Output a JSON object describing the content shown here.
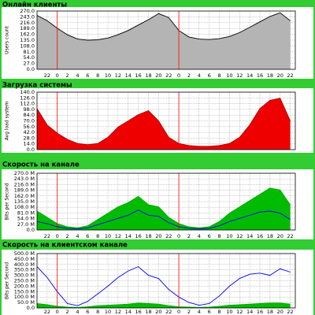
{
  "chart_data": [
    {
      "type": "area",
      "title": "Онлайн клиенты",
      "y_label": "Users count",
      "x": [
        0,
        2,
        4,
        6,
        8,
        10,
        12,
        14,
        16,
        18,
        20,
        22,
        24,
        26,
        28,
        30,
        32,
        34,
        36,
        38,
        40,
        42,
        44,
        46,
        48,
        50
      ],
      "series": [
        {
          "color": "#b4b4b4",
          "line_color": "#000000",
          "fill": true,
          "values": [
            250,
            225,
            190,
            160,
            140,
            135,
            137,
            145,
            160,
            180,
            205,
            230,
            258,
            240,
            180,
            150,
            140,
            138,
            142,
            152,
            170,
            195,
            220,
            245,
            262,
            225
          ]
        }
      ],
      "xlim": [
        0,
        51
      ],
      "ylim": [
        0,
        270
      ],
      "yticks": [
        {
          "value": 0,
          "label": "0.0"
        },
        {
          "value": 27,
          "label": "27.0"
        },
        {
          "value": 54,
          "label": "54.0"
        },
        {
          "value": 81,
          "label": "81.0"
        },
        {
          "value": 108,
          "label": "108.0"
        },
        {
          "value": 135,
          "label": "135.0"
        },
        {
          "value": 162,
          "label": "162.0"
        },
        {
          "value": 189,
          "label": "189.0"
        },
        {
          "value": 216,
          "label": "216.0"
        },
        {
          "value": 243,
          "label": "243.0"
        },
        {
          "value": 270,
          "label": "270.0"
        }
      ],
      "xticks": [
        {
          "value": 2,
          "label": "22"
        },
        {
          "value": 4,
          "label": "0"
        },
        {
          "value": 6,
          "label": "2"
        },
        {
          "value": 8,
          "label": "4"
        },
        {
          "value": 10,
          "label": "6"
        },
        {
          "value": 12,
          "label": "8"
        },
        {
          "value": 14,
          "label": "10"
        },
        {
          "value": 16,
          "label": "12"
        },
        {
          "value": 18,
          "label": "14"
        },
        {
          "value": 20,
          "label": "16"
        },
        {
          "value": 22,
          "label": "18"
        },
        {
          "value": 24,
          "label": "20"
        },
        {
          "value": 26,
          "label": "22"
        },
        {
          "value": 28,
          "label": "0"
        },
        {
          "value": 30,
          "label": "2"
        },
        {
          "value": 32,
          "label": "4"
        },
        {
          "value": 34,
          "label": "6"
        },
        {
          "value": 36,
          "label": "8"
        },
        {
          "value": 38,
          "label": "10"
        },
        {
          "value": 40,
          "label": "12"
        },
        {
          "value": 42,
          "label": "14"
        },
        {
          "value": 44,
          "label": "16"
        },
        {
          "value": 46,
          "label": "18"
        },
        {
          "value": 48,
          "label": "20"
        },
        {
          "value": 50,
          "label": "22"
        }
      ],
      "day_lines": [
        4,
        28
      ],
      "grid": true
    },
    {
      "type": "area",
      "title": "Загрузка системы",
      "y_label": "Avg load system",
      "x": [
        0,
        2,
        4,
        6,
        8,
        10,
        12,
        14,
        16,
        18,
        20,
        22,
        24,
        26,
        28,
        30,
        32,
        34,
        36,
        38,
        40,
        42,
        44,
        46,
        48,
        50
      ],
      "series": [
        {
          "color": "#ee0000",
          "line_color": "#aa0000",
          "fill": true,
          "values": [
            100,
            60,
            40,
            25,
            15,
            12,
            15,
            30,
            55,
            70,
            85,
            95,
            70,
            30,
            15,
            10,
            8,
            8,
            10,
            15,
            30,
            60,
            100,
            120,
            125,
            70
          ]
        }
      ],
      "xlim": [
        0,
        51
      ],
      "ylim": [
        0,
        140
      ],
      "yticks": [
        {
          "value": 0,
          "label": "0.0"
        },
        {
          "value": 14,
          "label": "14.0"
        },
        {
          "value": 28,
          "label": "28.0"
        },
        {
          "value": 42,
          "label": "42.0"
        },
        {
          "value": 56,
          "label": "56.0"
        },
        {
          "value": 70,
          "label": "70.0"
        },
        {
          "value": 84,
          "label": "84.0"
        },
        {
          "value": 98,
          "label": "98.0"
        },
        {
          "value": 112,
          "label": "112.0"
        },
        {
          "value": 126,
          "label": "126.0"
        },
        {
          "value": 140,
          "label": "140.0"
        }
      ],
      "xgrid": [
        2,
        4,
        6,
        8,
        10,
        12,
        14,
        16,
        18,
        20,
        22,
        24,
        26,
        28,
        30,
        32,
        34,
        36,
        38,
        40,
        42,
        44,
        46,
        48,
        50
      ],
      "day_lines": [
        4,
        28
      ],
      "grid": true
    },
    {
      "type": "area",
      "title": "Скорость на канале",
      "y_label": "Bits per Second",
      "x": [
        0,
        2,
        4,
        6,
        8,
        10,
        12,
        14,
        16,
        18,
        20,
        22,
        24,
        26,
        28,
        30,
        32,
        34,
        36,
        38,
        40,
        42,
        44,
        46,
        48,
        50
      ],
      "series": [
        {
          "color": "#00bb00",
          "line_color": "#00aa00",
          "fill": true,
          "values": [
            90,
            60,
            30,
            15,
            10,
            20,
            50,
            80,
            110,
            130,
            160,
            120,
            110,
            60,
            30,
            15,
            10,
            15,
            40,
            80,
            110,
            140,
            170,
            200,
            190,
            120
          ]
        },
        {
          "color": "#0000ff",
          "line_color": "#0000ff",
          "fill": false,
          "values": [
            40,
            30,
            15,
            8,
            5,
            10,
            25,
            40,
            55,
            70,
            95,
            70,
            65,
            35,
            15,
            8,
            5,
            8,
            20,
            40,
            55,
            70,
            85,
            90,
            80,
            50
          ]
        }
      ],
      "xlim": [
        0,
        51
      ],
      "ylim": [
        0,
        270
      ],
      "yticks": [
        {
          "value": 0,
          "label": "0.0"
        },
        {
          "value": 27,
          "label": "27.0 M"
        },
        {
          "value": 54,
          "label": "54.0 M"
        },
        {
          "value": 81,
          "label": "81.0 M"
        },
        {
          "value": 108,
          "label": "108.0 M"
        },
        {
          "value": 135,
          "label": "135.0 M"
        },
        {
          "value": 162,
          "label": "162.0 M"
        },
        {
          "value": 189,
          "label": "189.0 M"
        },
        {
          "value": 216,
          "label": "216.0 M"
        },
        {
          "value": 243,
          "label": "243.0 M"
        },
        {
          "value": 270,
          "label": "270.0 M"
        }
      ],
      "xticks": [
        {
          "value": 2,
          "label": "22"
        },
        {
          "value": 4,
          "label": "0"
        },
        {
          "value": 6,
          "label": "2"
        },
        {
          "value": 8,
          "label": "4"
        },
        {
          "value": 10,
          "label": "6"
        },
        {
          "value": 12,
          "label": "8"
        },
        {
          "value": 14,
          "label": "10"
        },
        {
          "value": 16,
          "label": "12"
        },
        {
          "value": 18,
          "label": "14"
        },
        {
          "value": 20,
          "label": "16"
        },
        {
          "value": 22,
          "label": "18"
        },
        {
          "value": 24,
          "label": "20"
        },
        {
          "value": 26,
          "label": "22"
        },
        {
          "value": 28,
          "label": "0"
        },
        {
          "value": 30,
          "label": "2"
        },
        {
          "value": 32,
          "label": "4"
        },
        {
          "value": 34,
          "label": "6"
        },
        {
          "value": 36,
          "label": "8"
        },
        {
          "value": 38,
          "label": "10"
        },
        {
          "value": 40,
          "label": "12"
        },
        {
          "value": 42,
          "label": "14"
        },
        {
          "value": 44,
          "label": "16"
        },
        {
          "value": 46,
          "label": "18"
        },
        {
          "value": 48,
          "label": "20"
        },
        {
          "value": 50,
          "label": "22"
        }
      ],
      "day_lines": [
        4,
        28
      ],
      "grid": true
    },
    {
      "type": "area",
      "title": "Скорость на клиентском канале",
      "y_label": "Bits per Second",
      "x": [
        0,
        2,
        4,
        6,
        8,
        10,
        12,
        14,
        16,
        18,
        20,
        22,
        24,
        26,
        28,
        30,
        32,
        34,
        36,
        38,
        40,
        42,
        44,
        46,
        48,
        50
      ],
      "series": [
        {
          "color": "#00bb00",
          "line_color": "#00aa00",
          "fill": true,
          "values": [
            40,
            30,
            15,
            8,
            5,
            10,
            20,
            25,
            30,
            35,
            45,
            40,
            35,
            20,
            10,
            8,
            5,
            8,
            15,
            25,
            30,
            35,
            40,
            45,
            45,
            35
          ]
        },
        {
          "color": "#0000ff",
          "line_color": "#0000ff",
          "fill": false,
          "values": [
            380,
            280,
            150,
            40,
            20,
            60,
            130,
            200,
            280,
            340,
            380,
            300,
            270,
            170,
            100,
            50,
            25,
            40,
            110,
            200,
            270,
            310,
            320,
            300,
            360,
            330
          ]
        }
      ],
      "xlim": [
        0,
        51
      ],
      "ylim": [
        0,
        500
      ],
      "yticks": [
        {
          "value": 0,
          "label": "0.0"
        },
        {
          "value": 50,
          "label": "50.0 M"
        },
        {
          "value": 100,
          "label": "100.0 M"
        },
        {
          "value": 150,
          "label": "150.0 M"
        },
        {
          "value": 200,
          "label": "200.0 M"
        },
        {
          "value": 250,
          "label": "250.0 M"
        },
        {
          "value": 300,
          "label": "300.0 M"
        },
        {
          "value": 350,
          "label": "350.0 M"
        },
        {
          "value": 400,
          "label": "400.0 M"
        },
        {
          "value": 450,
          "label": "450.0 M"
        },
        {
          "value": 500,
          "label": "500.0 M"
        }
      ],
      "xticks": [
        {
          "value": 2,
          "label": "22"
        },
        {
          "value": 4,
          "label": "0"
        },
        {
          "value": 6,
          "label": "2"
        },
        {
          "value": 8,
          "label": "4"
        },
        {
          "value": 10,
          "label": "6"
        },
        {
          "value": 12,
          "label": "8"
        },
        {
          "value": 14,
          "label": "10"
        },
        {
          "value": 16,
          "label": "12"
        },
        {
          "value": 18,
          "label": "14"
        },
        {
          "value": 20,
          "label": "16"
        },
        {
          "value": 22,
          "label": "18"
        },
        {
          "value": 24,
          "label": "20"
        },
        {
          "value": 26,
          "label": "22"
        },
        {
          "value": 28,
          "label": "0"
        },
        {
          "value": 30,
          "label": "2"
        },
        {
          "value": 32,
          "label": "4"
        },
        {
          "value": 34,
          "label": "6"
        },
        {
          "value": 36,
          "label": "8"
        },
        {
          "value": 38,
          "label": "10"
        },
        {
          "value": 40,
          "label": "12"
        },
        {
          "value": 42,
          "label": "14"
        },
        {
          "value": 44,
          "label": "16"
        },
        {
          "value": 46,
          "label": "18"
        },
        {
          "value": 48,
          "label": "20"
        },
        {
          "value": 50,
          "label": "22"
        }
      ],
      "day_lines": [
        4,
        28
      ],
      "grid": true
    }
  ]
}
